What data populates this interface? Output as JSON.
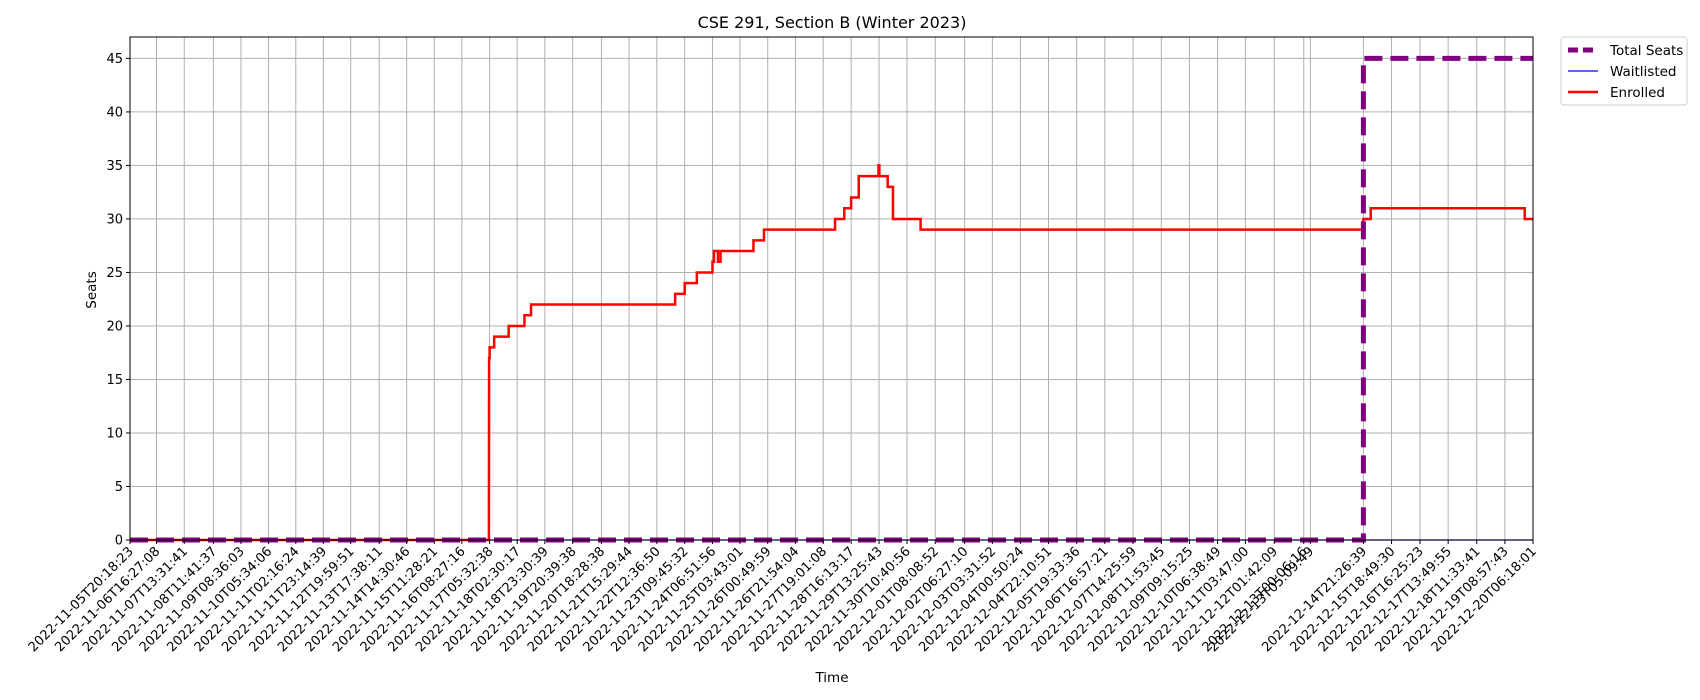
{
  "chart_data": {
    "type": "line",
    "title": "CSE 291, Section B (Winter 2023)",
    "xlabel": "Time",
    "ylabel": "Seats",
    "ylim": [
      0,
      47
    ],
    "yticks": [
      0,
      5,
      10,
      15,
      20,
      25,
      30,
      35,
      40,
      45
    ],
    "xlim": [
      "2022-11-05T20:18:23",
      "2022-12-20T06:18:01"
    ],
    "grid": true,
    "legend_position": "outside top-right",
    "x_ticks": [
      "2022-11-05T20:18:23",
      "2022-11-06T16:27:08",
      "2022-11-07T13:31:41",
      "2022-11-08T11:41:37",
      "2022-11-09T08:36:03",
      "2022-11-10T05:34:06",
      "2022-11-11T02:16:24",
      "2022-11-11T23:14:39",
      "2022-11-12T19:59:51",
      "2022-11-13T17:38:11",
      "2022-11-14T14:30:46",
      "2022-11-15T11:28:21",
      "2022-11-16T08:27:16",
      "2022-11-17T05:32:38",
      "2022-11-18T02:30:17",
      "2022-11-18T23:30:39",
      "2022-11-19T20:39:38",
      "2022-11-20T18:28:38",
      "2022-11-21T15:29:44",
      "2022-11-22T12:36:50",
      "2022-11-23T09:45:32",
      "2022-11-24T06:51:56",
      "2022-11-25T03:43:01",
      "2022-11-26T00:49:59",
      "2022-11-26T21:54:04",
      "2022-11-27T19:01:08",
      "2022-11-28T16:13:17",
      "2022-11-29T13:25:43",
      "2022-11-30T10:40:56",
      "2022-12-01T08:08:52",
      "2022-12-02T06:27:10",
      "2022-12-03T03:31:52",
      "2022-12-04T00:50:24",
      "2022-12-04T22:10:51",
      "2022-12-05T19:33:36",
      "2022-12-06T16:57:21",
      "2022-12-07T14:25:59",
      "2022-12-08T11:53:45",
      "2022-12-09T09:15:25",
      "2022-12-10T06:38:49",
      "2022-12-11T03:47:00",
      "2022-12-12T01:42:09",
      "2022-12-13T00:06:16",
      "2022-12-13T05:09:49",
      "2022-12-14T21:26:39",
      "2022-12-15T18:49:30",
      "2022-12-16T16:25:23",
      "2022-12-17T13:49:55",
      "2022-12-18T11:33:41",
      "2022-12-19T08:57:43",
      "2022-12-20T06:18:01"
    ],
    "series": [
      {
        "name": "Total Seats",
        "color": "#800080",
        "style": "dashed",
        "points": [
          [
            "2022-11-05T20:18:23",
            0
          ],
          [
            "2022-12-14T21:26:39",
            0
          ],
          [
            "2022-12-14T21:26:39",
            45
          ],
          [
            "2022-12-20T06:18:01",
            45
          ]
        ]
      },
      {
        "name": "Waitlisted",
        "color": "#0000ff",
        "style": "solid",
        "points": [
          [
            "2022-11-05T20:18:23",
            0
          ],
          [
            "2022-12-20T06:18:01",
            0
          ]
        ]
      },
      {
        "name": "Enrolled",
        "color": "#ff0000",
        "style": "solid",
        "points": [
          [
            "2022-11-05T20:18:23",
            0
          ],
          [
            "2022-11-17T05:00:00",
            0
          ],
          [
            "2022-11-17T05:05:00",
            12
          ],
          [
            "2022-11-17T05:10:00",
            17
          ],
          [
            "2022-11-17T05:32:38",
            17
          ],
          [
            "2022-11-17T05:32:38",
            18
          ],
          [
            "2022-11-17T09:00:00",
            18
          ],
          [
            "2022-11-17T09:00:00",
            19
          ],
          [
            "2022-11-17T20:00:00",
            19
          ],
          [
            "2022-11-17T20:00:00",
            20
          ],
          [
            "2022-11-18T08:00:00",
            20
          ],
          [
            "2022-11-18T08:00:00",
            21
          ],
          [
            "2022-11-18T13:00:00",
            21
          ],
          [
            "2022-11-18T13:00:00",
            22
          ],
          [
            "2022-11-23T02:30:00",
            22
          ],
          [
            "2022-11-23T02:30:00",
            23
          ],
          [
            "2022-11-23T09:45:32",
            23
          ],
          [
            "2022-11-23T09:45:32",
            24
          ],
          [
            "2022-11-23T19:00:00",
            24
          ],
          [
            "2022-11-23T19:00:00",
            25
          ],
          [
            "2022-11-24T06:51:56",
            25
          ],
          [
            "2022-11-24T06:51:56",
            26
          ],
          [
            "2022-11-24T08:00:00",
            26
          ],
          [
            "2022-11-24T08:00:00",
            27
          ],
          [
            "2022-11-24T11:00:00",
            27
          ],
          [
            "2022-11-24T11:00:00",
            26
          ],
          [
            "2022-11-24T13:00:00",
            26
          ],
          [
            "2022-11-24T13:00:00",
            27
          ],
          [
            "2022-11-25T14:00:00",
            27
          ],
          [
            "2022-11-25T14:00:00",
            28
          ],
          [
            "2022-11-25T22:00:00",
            28
          ],
          [
            "2022-11-25T22:00:00",
            29
          ],
          [
            "2022-11-28T04:00:00",
            29
          ],
          [
            "2022-11-28T04:00:00",
            30
          ],
          [
            "2022-11-28T11:00:00",
            30
          ],
          [
            "2022-11-28T11:00:00",
            31
          ],
          [
            "2022-11-28T16:13:17",
            31
          ],
          [
            "2022-11-28T16:13:17",
            32
          ],
          [
            "2022-11-28T22:00:00",
            32
          ],
          [
            "2022-11-28T22:00:00",
            34
          ],
          [
            "2022-11-29T13:00:00",
            34
          ],
          [
            "2022-11-29T13:00:00",
            35
          ],
          [
            "2022-11-29T13:40:00",
            35
          ],
          [
            "2022-11-29T13:40:00",
            34
          ],
          [
            "2022-11-29T20:00:00",
            34
          ],
          [
            "2022-11-29T20:00:00",
            33
          ],
          [
            "2022-11-30T00:00:00",
            33
          ],
          [
            "2022-11-30T00:00:00",
            30
          ],
          [
            "2022-11-30T21:00:00",
            30
          ],
          [
            "2022-11-30T21:00:00",
            29
          ],
          [
            "2022-12-14T21:00:00",
            29
          ],
          [
            "2022-12-14T21:26:39",
            30
          ],
          [
            "2022-12-15T03:00:00",
            30
          ],
          [
            "2022-12-15T03:00:00",
            31
          ],
          [
            "2022-12-20T00:00:00",
            31
          ],
          [
            "2022-12-20T00:00:00",
            30
          ],
          [
            "2022-12-20T06:18:01",
            30
          ]
        ]
      }
    ]
  }
}
